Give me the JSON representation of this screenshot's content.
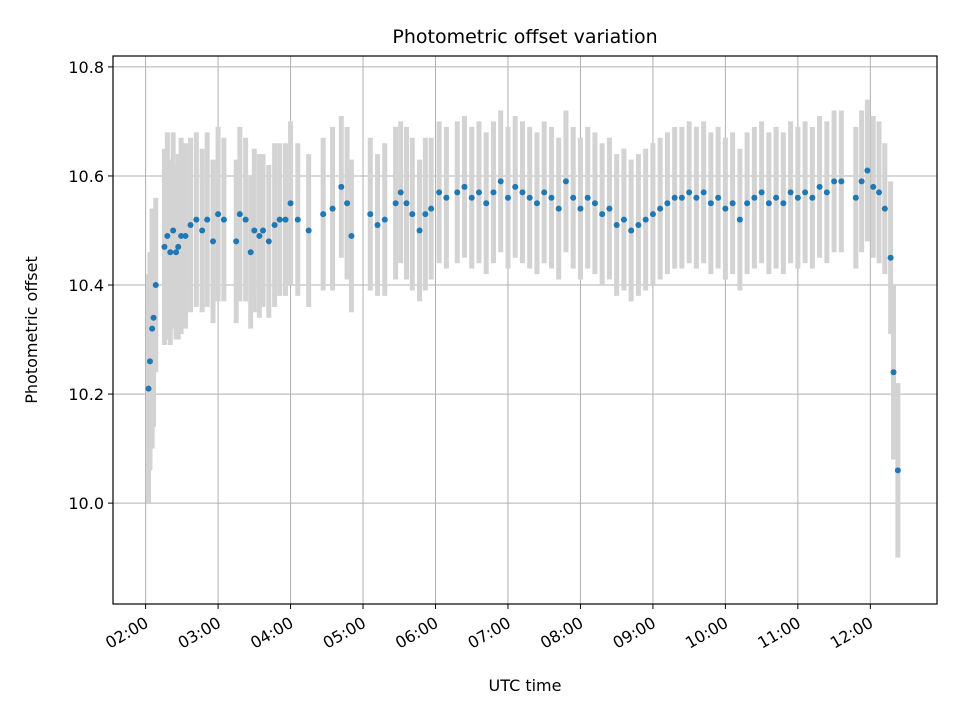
{
  "chart_data": {
    "type": "scatter",
    "title": "Photometric offset variation",
    "xlabel": "UTC time",
    "ylabel": "Photometric offset",
    "x_ticks": [
      "02:00",
      "03:00",
      "04:00",
      "05:00",
      "06:00",
      "07:00",
      "08:00",
      "09:00",
      "10:00",
      "11:00",
      "12:00"
    ],
    "y_ticks": [
      "10.0",
      "10.2",
      "10.4",
      "10.6",
      "10.8"
    ],
    "xlim_hours": [
      1.55,
      12.92
    ],
    "ylim": [
      9.815,
      10.82
    ],
    "grid": true,
    "colors": {
      "points": "#1f77b4",
      "errorbars": "#d3d3d3",
      "grid": "#b0b0b0"
    },
    "error_typical": 0.12,
    "points": [
      [
        2.04,
        10.21,
        0.21
      ],
      [
        2.06,
        10.26,
        0.2
      ],
      [
        2.09,
        10.32,
        0.22
      ],
      [
        2.11,
        10.34,
        0.2
      ],
      [
        2.14,
        10.4,
        0.16
      ],
      [
        2.26,
        10.47,
        0.18
      ],
      [
        2.3,
        10.49,
        0.19
      ],
      [
        2.34,
        10.46,
        0.17
      ],
      [
        2.38,
        10.5,
        0.18
      ],
      [
        2.42,
        10.46,
        0.16
      ],
      [
        2.45,
        10.47,
        0.17
      ],
      [
        2.49,
        10.49,
        0.18
      ],
      [
        2.55,
        10.49,
        0.17
      ],
      [
        2.62,
        10.51,
        0.16
      ],
      [
        2.7,
        10.52,
        0.16
      ],
      [
        2.78,
        10.5,
        0.15
      ],
      [
        2.85,
        10.52,
        0.16
      ],
      [
        2.93,
        10.48,
        0.15
      ],
      [
        3.0,
        10.53,
        0.16
      ],
      [
        3.08,
        10.52,
        0.15
      ],
      [
        3.25,
        10.48,
        0.15
      ],
      [
        3.3,
        10.53,
        0.16
      ],
      [
        3.38,
        10.52,
        0.15
      ],
      [
        3.45,
        10.46,
        0.14
      ],
      [
        3.5,
        10.5,
        0.15
      ],
      [
        3.57,
        10.49,
        0.15
      ],
      [
        3.62,
        10.5,
        0.14
      ],
      [
        3.7,
        10.48,
        0.14
      ],
      [
        3.78,
        10.51,
        0.15
      ],
      [
        3.85,
        10.52,
        0.14
      ],
      [
        3.93,
        10.52,
        0.14
      ],
      [
        4.0,
        10.55,
        0.15
      ],
      [
        4.1,
        10.52,
        0.14
      ],
      [
        4.25,
        10.5,
        0.14
      ],
      [
        4.45,
        10.53,
        0.14
      ],
      [
        4.58,
        10.54,
        0.15
      ],
      [
        4.7,
        10.58,
        0.13
      ],
      [
        4.78,
        10.55,
        0.14
      ],
      [
        4.84,
        10.49,
        0.14
      ],
      [
        5.1,
        10.53,
        0.14
      ],
      [
        5.2,
        10.51,
        0.13
      ],
      [
        5.3,
        10.52,
        0.14
      ],
      [
        5.45,
        10.55,
        0.14
      ],
      [
        5.52,
        10.57,
        0.13
      ],
      [
        5.6,
        10.55,
        0.14
      ],
      [
        5.68,
        10.53,
        0.14
      ],
      [
        5.78,
        10.5,
        0.13
      ],
      [
        5.86,
        10.53,
        0.14
      ],
      [
        5.94,
        10.54,
        0.13
      ],
      [
        6.05,
        10.57,
        0.13
      ],
      [
        6.15,
        10.56,
        0.13
      ],
      [
        6.3,
        10.57,
        0.13
      ],
      [
        6.4,
        10.58,
        0.13
      ],
      [
        6.5,
        10.56,
        0.13
      ],
      [
        6.6,
        10.57,
        0.13
      ],
      [
        6.7,
        10.55,
        0.13
      ],
      [
        6.8,
        10.57,
        0.13
      ],
      [
        6.9,
        10.59,
        0.13
      ],
      [
        7.0,
        10.56,
        0.13
      ],
      [
        7.1,
        10.58,
        0.13
      ],
      [
        7.2,
        10.57,
        0.13
      ],
      [
        7.3,
        10.56,
        0.13
      ],
      [
        7.4,
        10.55,
        0.13
      ],
      [
        7.5,
        10.57,
        0.13
      ],
      [
        7.6,
        10.56,
        0.13
      ],
      [
        7.7,
        10.54,
        0.13
      ],
      [
        7.8,
        10.59,
        0.13
      ],
      [
        7.9,
        10.56,
        0.13
      ],
      [
        8.0,
        10.54,
        0.13
      ],
      [
        8.1,
        10.56,
        0.13
      ],
      [
        8.2,
        10.55,
        0.13
      ],
      [
        8.3,
        10.53,
        0.13
      ],
      [
        8.4,
        10.54,
        0.13
      ],
      [
        8.5,
        10.51,
        0.13
      ],
      [
        8.6,
        10.52,
        0.13
      ],
      [
        8.7,
        10.5,
        0.13
      ],
      [
        8.8,
        10.51,
        0.13
      ],
      [
        8.9,
        10.52,
        0.13
      ],
      [
        9.0,
        10.53,
        0.13
      ],
      [
        9.1,
        10.54,
        0.13
      ],
      [
        9.2,
        10.55,
        0.13
      ],
      [
        9.3,
        10.56,
        0.13
      ],
      [
        9.4,
        10.56,
        0.13
      ],
      [
        9.5,
        10.57,
        0.13
      ],
      [
        9.6,
        10.56,
        0.13
      ],
      [
        9.7,
        10.57,
        0.13
      ],
      [
        9.8,
        10.55,
        0.13
      ],
      [
        9.9,
        10.56,
        0.13
      ],
      [
        10.0,
        10.54,
        0.13
      ],
      [
        10.1,
        10.55,
        0.13
      ],
      [
        10.2,
        10.52,
        0.13
      ],
      [
        10.3,
        10.55,
        0.13
      ],
      [
        10.4,
        10.56,
        0.13
      ],
      [
        10.5,
        10.57,
        0.13
      ],
      [
        10.6,
        10.55,
        0.13
      ],
      [
        10.7,
        10.56,
        0.13
      ],
      [
        10.8,
        10.55,
        0.13
      ],
      [
        10.9,
        10.57,
        0.13
      ],
      [
        11.0,
        10.56,
        0.13
      ],
      [
        11.1,
        10.57,
        0.13
      ],
      [
        11.2,
        10.56,
        0.13
      ],
      [
        11.3,
        10.58,
        0.13
      ],
      [
        11.4,
        10.57,
        0.13
      ],
      [
        11.5,
        10.59,
        0.13
      ],
      [
        11.6,
        10.59,
        0.13
      ],
      [
        11.8,
        10.56,
        0.13
      ],
      [
        11.88,
        10.59,
        0.13
      ],
      [
        11.96,
        10.61,
        0.13
      ],
      [
        12.04,
        10.58,
        0.13
      ],
      [
        12.12,
        10.57,
        0.13
      ],
      [
        12.2,
        10.54,
        0.12
      ],
      [
        12.28,
        10.45,
        0.14
      ],
      [
        12.32,
        10.24,
        0.16
      ],
      [
        12.38,
        10.06,
        0.16
      ]
    ]
  }
}
